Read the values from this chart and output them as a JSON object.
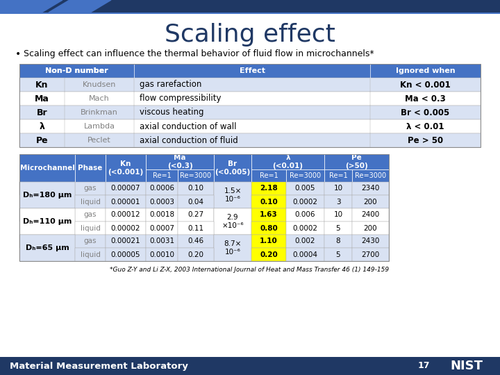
{
  "title": "Scaling effect",
  "bullet": "Scaling effect can influence the thermal behavior of fluid flow in microchannels*",
  "top_table_rows": [
    [
      "Kn",
      "Knudsen",
      "gas rarefaction",
      "Kn < 0.001"
    ],
    [
      "Ma",
      "Mach",
      "flow compressibility",
      "Ma < 0.3"
    ],
    [
      "Br",
      "Brinkman",
      "viscous heating",
      "Br < 0.005"
    ],
    [
      "λ",
      "Lambda",
      "axial conduction of wall",
      "λ < 0.01"
    ],
    [
      "Pe",
      "Peclet",
      "axial conduction of fluid",
      "Pe > 50"
    ]
  ],
  "bottom_rows": [
    [
      "Dₕ=180 μm",
      "gas",
      "0.00007",
      "0.0006",
      "0.10",
      "1.5×\n10⁻⁶",
      "2.18",
      "0.005",
      "10",
      "2340"
    ],
    [
      "",
      "liquid",
      "0.00001",
      "0.0003",
      "0.04",
      "",
      "0.10",
      "0.0002",
      "3",
      "200"
    ],
    [
      "Dₕ=110 μm",
      "gas",
      "0.00012",
      "0.0018",
      "0.27",
      "2.9\n×10⁻⁶",
      "1.63",
      "0.006",
      "10",
      "2400"
    ],
    [
      "",
      "liquid",
      "0.00002",
      "0.0007",
      "0.11",
      "",
      "0.80",
      "0.0002",
      "5",
      "200"
    ],
    [
      "Dₕ=65 μm",
      "gas",
      "0.00021",
      "0.0031",
      "0.46",
      "8.7×\n10⁻⁶",
      "1.10",
      "0.002",
      "8",
      "2430"
    ],
    [
      "",
      "liquid",
      "0.00005",
      "0.0010",
      "0.20",
      "",
      "0.20",
      "0.0004",
      "5",
      "2700"
    ]
  ],
  "footnote": "*Guo Z-Y and Li Z-X, 2003 International Journal of Heat and Mass Transfer 46 (1) 149-159",
  "footer_left": "Material Measurement Laboratory",
  "footer_page": "17",
  "hdr_blue": "#4472C4",
  "dark_blue": "#1F3864",
  "alt_blue": "#D9E2F3",
  "white": "#FFFFFF",
  "yellow": "#FFFF00",
  "gray_text": "#808080",
  "slide_bg": "#FFFFFF"
}
